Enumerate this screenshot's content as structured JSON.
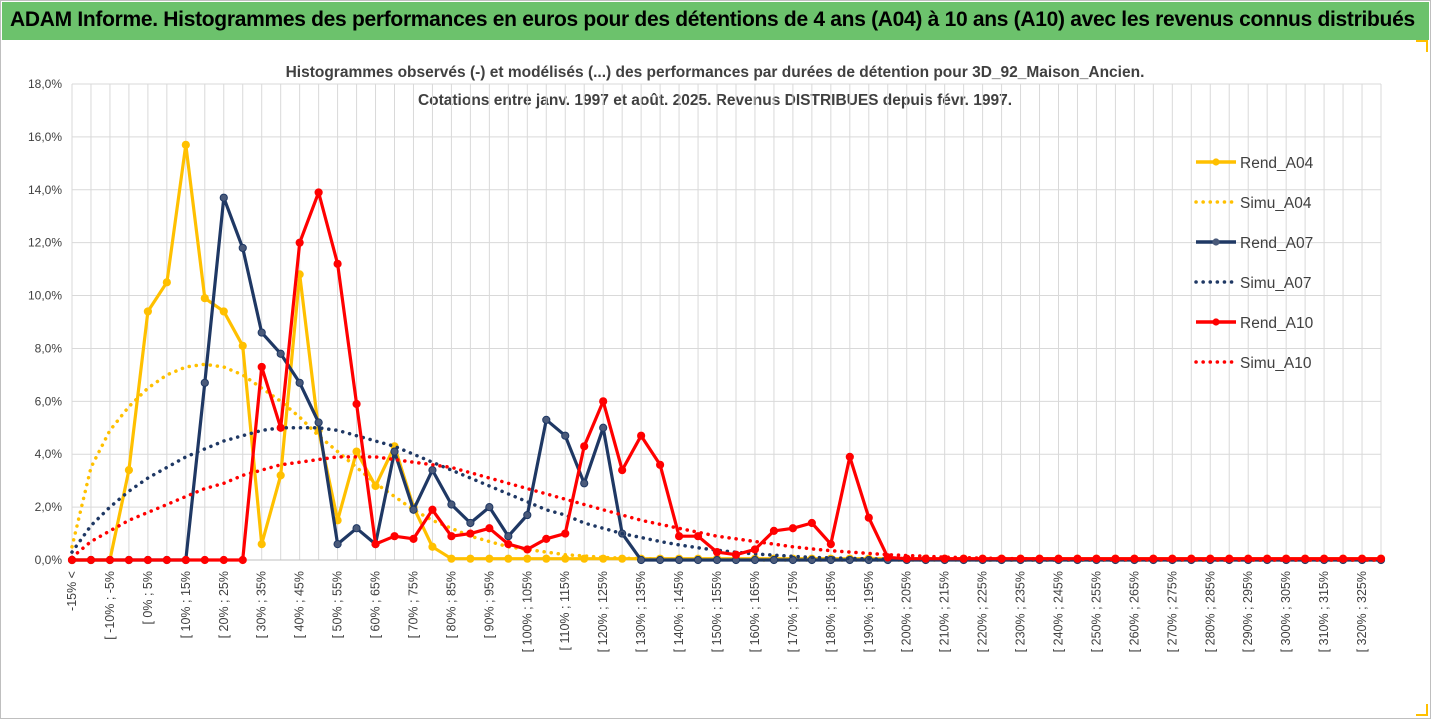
{
  "header": {
    "title": "ADAM Informe. Histogrammes des performances en euros pour des détentions de 4 ans (A04) à 10 ans (A10) avec les revenus connus distribués"
  },
  "colors": {
    "header_bg": "#6cc26c",
    "A04": "#ffc000",
    "A07": "#1f3864",
    "A10": "#ff0000",
    "grid": "#d9d9d9"
  },
  "chart_data": {
    "type": "line",
    "title_lines": [
      "Histogrammes observés (-) et modélisés (...) des performances par durées de détention pour 3D_92_Maison_Ancien.",
      "Cotations entre janv. 1997 et août. 2025. Revenus DISTRIBUES depuis févr. 1997."
    ],
    "ylim": [
      0,
      18
    ],
    "y_ticks": [
      "0,0%",
      "2,0%",
      "4,0%",
      "6,0%",
      "8,0%",
      "10,0%",
      "12,0%",
      "14,0%",
      "16,0%",
      "18,0%"
    ],
    "x_labels": [
      "-15% <",
      "[ -10% ; -5%",
      "[ 0% ; 5%",
      "[ 10% ; 15%",
      "[ 20% ; 25%",
      "[ 30% ; 35%",
      "[ 40% ; 45%",
      "[ 50% ; 55%",
      "[ 60% ; 65%",
      "[ 70% ; 75%",
      "[ 80% ; 85%",
      "[ 90% ; 95%",
      "[ 100% ; 105%",
      "[ 110% ; 115%",
      "[ 120% ; 125%",
      "[ 130% ; 135%",
      "[ 140% ; 145%",
      "[ 150% ; 155%",
      "[ 160% ; 165%",
      "[ 170% ; 175%",
      "[ 180% ; 185%",
      "[ 190% ; 195%",
      "[ 200% ; 205%",
      "[ 210% ; 215%",
      "[ 220% ; 225%",
      "[ 230% ; 235%",
      "[ 240% ; 245%",
      "[ 250% ; 255%",
      "[ 260% ; 265%",
      "[ 270% ; 275%",
      "[ 280% ; 285%",
      "[ 290% ; 295%",
      "[ 300% ; 305%",
      "[ 310% ; 315%",
      "[ 320% ; 325%"
    ],
    "categories_count": 70,
    "legend_position": "right",
    "series": [
      {
        "name": "Rend_A04",
        "style": "solid",
        "color": "#ffc000",
        "values": [
          0,
          0,
          0,
          3.4,
          9.4,
          10.5,
          15.7,
          9.9,
          9.4,
          8.1,
          0.6,
          3.2,
          10.8,
          4.9,
          1.5,
          4.1,
          2.8,
          4.3,
          2.0,
          0.5,
          0.05,
          0.05,
          0.05,
          0.05,
          0.05,
          0.05,
          0.05,
          0.05,
          0.05,
          0.05,
          0.05,
          0.05,
          0.05,
          0.05,
          0.05,
          0.05,
          0.05,
          0.05,
          0.05,
          0.05,
          0.05,
          0.05,
          0.05,
          0.05,
          0.05,
          0.05,
          0.05,
          0.05,
          0.05,
          0.05,
          0.05,
          0.05,
          0.05,
          0.05,
          0.05,
          0.05,
          0.05,
          0.05,
          0.05,
          0.05,
          0.05,
          0.05,
          0.05,
          0.05,
          0.05,
          0.05,
          0.05,
          0.05,
          0.05,
          0.05
        ]
      },
      {
        "name": "Simu_A04",
        "style": "dotted",
        "color": "#ffc000",
        "values": [
          0.5,
          3.5,
          4.9,
          5.8,
          6.5,
          7.0,
          7.3,
          7.4,
          7.3,
          7.0,
          6.5,
          6.0,
          5.4,
          4.7,
          4.1,
          3.5,
          2.9,
          2.4,
          1.9,
          1.5,
          1.2,
          0.9,
          0.7,
          0.5,
          0.4,
          0.3,
          0.2,
          0.15,
          0.1,
          0.07,
          0.05,
          0.04,
          0.03,
          0.02,
          0.01,
          0.01,
          0,
          0,
          0,
          0,
          0,
          0,
          0,
          0,
          0,
          0,
          0,
          0,
          0,
          0,
          0,
          0,
          0,
          0,
          0,
          0,
          0,
          0,
          0,
          0,
          0,
          0,
          0,
          0,
          0,
          0,
          0,
          0,
          0,
          0
        ]
      },
      {
        "name": "Rend_A07",
        "style": "solid",
        "color": "#1f3864",
        "values": [
          0,
          0,
          0,
          0,
          0,
          0,
          0,
          6.7,
          13.7,
          11.8,
          8.6,
          7.8,
          6.7,
          5.2,
          0.6,
          1.2,
          0.6,
          4.1,
          1.9,
          3.4,
          2.1,
          1.4,
          2.0,
          0.9,
          1.7,
          5.3,
          4.7,
          2.9,
          5.0,
          1.0,
          0,
          0,
          0,
          0,
          0,
          0,
          0,
          0,
          0,
          0,
          0,
          0,
          0,
          0,
          0,
          0,
          0,
          0,
          0,
          0,
          0,
          0,
          0,
          0,
          0,
          0,
          0,
          0,
          0,
          0,
          0,
          0,
          0,
          0,
          0,
          0,
          0,
          0,
          0,
          0
        ]
      },
      {
        "name": "Simu_A07",
        "style": "dotted",
        "color": "#1f3864",
        "values": [
          0.3,
          1.3,
          2.0,
          2.6,
          3.1,
          3.5,
          3.9,
          4.2,
          4.5,
          4.7,
          4.9,
          5.0,
          5.0,
          5.0,
          4.9,
          4.7,
          4.5,
          4.3,
          4.0,
          3.7,
          3.4,
          3.1,
          2.8,
          2.5,
          2.2,
          1.9,
          1.7,
          1.4,
          1.2,
          1.0,
          0.85,
          0.7,
          0.57,
          0.46,
          0.37,
          0.29,
          0.23,
          0.18,
          0.14,
          0.1,
          0.08,
          0.06,
          0.04,
          0.03,
          0.02,
          0.02,
          0.01,
          0.01,
          0,
          0,
          0,
          0,
          0,
          0,
          0,
          0,
          0,
          0,
          0,
          0,
          0,
          0,
          0,
          0,
          0,
          0,
          0,
          0,
          0,
          0
        ]
      },
      {
        "name": "Rend_A10",
        "style": "solid",
        "color": "#ff0000",
        "values": [
          0,
          0,
          0,
          0,
          0,
          0,
          0,
          0,
          0,
          0,
          7.3,
          5.0,
          12.0,
          13.9,
          11.2,
          5.9,
          0.6,
          0.9,
          0.8,
          1.9,
          0.9,
          1.0,
          1.2,
          0.6,
          0.4,
          0.8,
          1.0,
          4.3,
          6.0,
          3.4,
          4.7,
          3.6,
          0.9,
          0.9,
          0.3,
          0.2,
          0.4,
          1.1,
          1.2,
          1.4,
          0.6,
          3.9,
          1.6,
          0.1,
          0.05,
          0.05,
          0.05,
          0.05,
          0.05,
          0.05,
          0.05,
          0.05,
          0.05,
          0.05,
          0.05,
          0.05,
          0.05,
          0.05,
          0.05,
          0.05,
          0.05,
          0.05,
          0.05,
          0.05,
          0.05,
          0.05,
          0.05,
          0.05,
          0.05,
          0.05
        ]
      },
      {
        "name": "Simu_A10",
        "style": "dotted",
        "color": "#ff0000",
        "values": [
          0.1,
          0.7,
          1.1,
          1.5,
          1.8,
          2.1,
          2.4,
          2.7,
          2.9,
          3.2,
          3.4,
          3.6,
          3.7,
          3.8,
          3.9,
          3.9,
          3.9,
          3.8,
          3.7,
          3.6,
          3.5,
          3.3,
          3.1,
          2.9,
          2.7,
          2.5,
          2.3,
          2.1,
          1.9,
          1.7,
          1.5,
          1.35,
          1.2,
          1.05,
          0.9,
          0.8,
          0.7,
          0.6,
          0.5,
          0.42,
          0.35,
          0.3,
          0.25,
          0.2,
          0.17,
          0.14,
          0.11,
          0.09,
          0.07,
          0.06,
          0.05,
          0.04,
          0.03,
          0.03,
          0.02,
          0.02,
          0.01,
          0.01,
          0.01,
          0.01,
          0,
          0,
          0,
          0,
          0,
          0,
          0,
          0,
          0,
          0
        ]
      }
    ]
  }
}
